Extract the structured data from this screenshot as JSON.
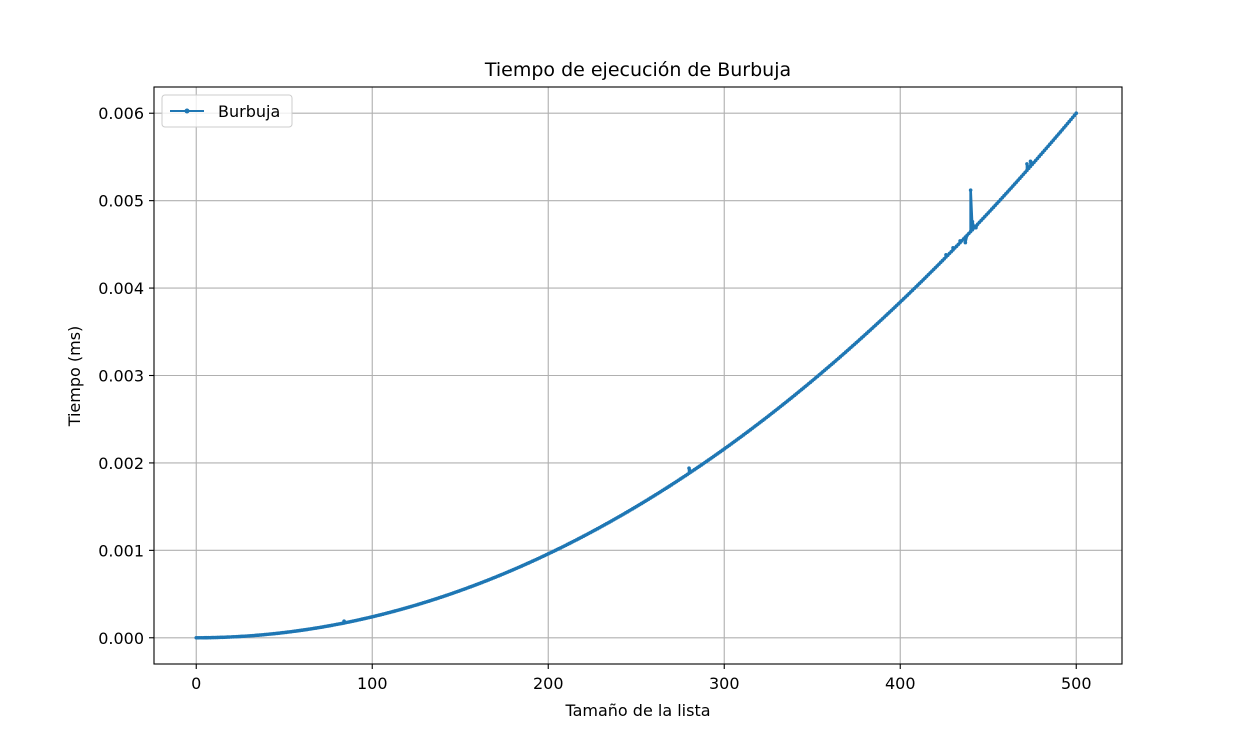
{
  "chart_data": {
    "type": "line",
    "title": "Tiempo de ejecución de Burbuja",
    "xlabel": "Tamaño de la lista",
    "ylabel": "Tiempo (ms)",
    "xlim": [
      -24,
      526
    ],
    "ylim": [
      -0.0003,
      0.0063
    ],
    "xticks": [
      0,
      100,
      200,
      300,
      400,
      500
    ],
    "xtick_labels": [
      "0",
      "100",
      "200",
      "300",
      "400",
      "500"
    ],
    "yticks": [
      0.0,
      0.001,
      0.002,
      0.003,
      0.004,
      0.005,
      0.006
    ],
    "ytick_labels": [
      "0.000",
      "0.001",
      "0.002",
      "0.003",
      "0.004",
      "0.005",
      "0.006"
    ],
    "grid": true,
    "legend_position": "top-left",
    "series": [
      {
        "name": "Burbuja",
        "color": "#1f77b4",
        "marker": "dot",
        "model": {
          "x_start": 0,
          "x_end": 500,
          "step": 1,
          "coefficient": 2.4e-08,
          "exponent": 2
        },
        "outliers": [
          {
            "x": 84,
            "y": 0.00019
          },
          {
            "x": 280,
            "y": 0.00194
          },
          {
            "x": 426,
            "y": 0.00438
          },
          {
            "x": 430,
            "y": 0.00446
          },
          {
            "x": 434,
            "y": 0.00454
          },
          {
            "x": 437,
            "y": 0.00452
          },
          {
            "x": 440,
            "y": 0.00512
          },
          {
            "x": 441,
            "y": 0.00476
          },
          {
            "x": 443,
            "y": 0.00469
          },
          {
            "x": 472,
            "y": 0.00542
          },
          {
            "x": 474,
            "y": 0.00545
          }
        ]
      }
    ]
  }
}
